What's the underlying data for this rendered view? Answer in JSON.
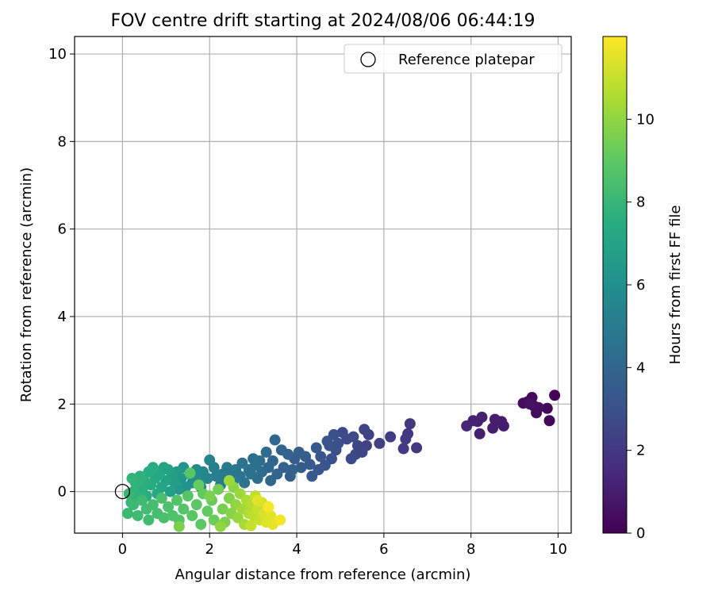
{
  "chart_data": {
    "type": "scatter",
    "title": "FOV centre drift starting at 2024/08/06 06:44:19",
    "xlabel": "Angular distance from reference (arcmin)",
    "ylabel": "Rotation from reference (arcmin)",
    "xlim": [
      -1.1,
      10.3
    ],
    "ylim": [
      -0.95,
      10.4
    ],
    "xticks": [
      0,
      2,
      4,
      6,
      8,
      10
    ],
    "yticks": [
      0,
      2,
      4,
      6,
      8,
      10
    ],
    "grid": true,
    "legend": {
      "placement": "top-right",
      "entries": [
        "Reference platepar"
      ]
    },
    "reference_point": {
      "x": 0,
      "y": 0,
      "marker": "open-circle"
    },
    "colorbar": {
      "label": "Hours from first FF file",
      "colormap": "viridis",
      "range": [
        0,
        12
      ],
      "ticks": [
        0,
        2,
        4,
        6,
        8,
        10
      ]
    },
    "points": [
      [
        9.92,
        2.2,
        0.1
      ],
      [
        9.75,
        1.9,
        0.2
      ],
      [
        9.8,
        1.62,
        0.2
      ],
      [
        9.5,
        1.8,
        0.3
      ],
      [
        9.4,
        2.15,
        0.3
      ],
      [
        9.3,
        2.05,
        0.4
      ],
      [
        9.2,
        2.02,
        0.4
      ],
      [
        9.55,
        1.92,
        0.5
      ],
      [
        9.45,
        1.95,
        0.5
      ],
      [
        9.35,
        2.0,
        0.6
      ],
      [
        8.75,
        1.5,
        0.9
      ],
      [
        8.7,
        1.6,
        0.9
      ],
      [
        8.55,
        1.65,
        1.0
      ],
      [
        8.5,
        1.45,
        1.0
      ],
      [
        8.25,
        1.7,
        1.1
      ],
      [
        8.2,
        1.32,
        1.1
      ],
      [
        8.15,
        1.6,
        1.2
      ],
      [
        8.05,
        1.62,
        1.2
      ],
      [
        7.9,
        1.5,
        1.3
      ],
      [
        6.75,
        1.0,
        1.9
      ],
      [
        6.6,
        1.55,
        2.0
      ],
      [
        6.55,
        1.32,
        2.0
      ],
      [
        6.5,
        1.2,
        2.1
      ],
      [
        6.45,
        0.98,
        2.1
      ],
      [
        6.15,
        1.25,
        2.2
      ],
      [
        5.9,
        1.1,
        2.3
      ],
      [
        5.65,
        1.3,
        2.4
      ],
      [
        5.6,
        1.05,
        2.4
      ],
      [
        5.55,
        1.42,
        2.5
      ],
      [
        5.5,
        0.9,
        2.5
      ],
      [
        5.4,
        1.05,
        2.6
      ],
      [
        5.35,
        0.85,
        2.6
      ],
      [
        5.3,
        1.25,
        2.7
      ],
      [
        5.25,
        0.75,
        2.7
      ],
      [
        5.15,
        1.2,
        2.8
      ],
      [
        5.05,
        1.35,
        2.8
      ],
      [
        4.95,
        1.1,
        2.9
      ],
      [
        4.9,
        0.95,
        2.9
      ],
      [
        4.85,
        1.3,
        3.0
      ],
      [
        4.8,
        0.75,
        3.0
      ],
      [
        4.75,
        1.05,
        3.1
      ],
      [
        4.7,
        1.15,
        3.1
      ],
      [
        4.65,
        0.6,
        3.2
      ],
      [
        4.55,
        0.8,
        3.2
      ],
      [
        4.5,
        0.5,
        3.3
      ],
      [
        4.45,
        1.0,
        3.3
      ],
      [
        4.35,
        0.35,
        3.4
      ],
      [
        4.3,
        0.62,
        3.4
      ],
      [
        4.2,
        0.8,
        3.5
      ],
      [
        4.1,
        0.55,
        3.5
      ],
      [
        4.05,
        0.9,
        3.6
      ],
      [
        3.95,
        0.75,
        3.6
      ],
      [
        3.9,
        0.5,
        3.7
      ],
      [
        3.85,
        0.35,
        3.7
      ],
      [
        3.8,
        0.85,
        3.8
      ],
      [
        3.7,
        0.55,
        3.8
      ],
      [
        3.65,
        0.95,
        3.9
      ],
      [
        3.55,
        0.4,
        3.9
      ],
      [
        3.5,
        1.18,
        4.0
      ],
      [
        3.45,
        0.7,
        4.0
      ],
      [
        3.4,
        0.25,
        4.1
      ],
      [
        3.35,
        0.55,
        4.1
      ],
      [
        3.3,
        0.9,
        4.2
      ],
      [
        3.2,
        0.45,
        4.2
      ],
      [
        3.15,
        0.7,
        4.3
      ],
      [
        3.1,
        0.3,
        4.3
      ],
      [
        3.05,
        0.6,
        4.4
      ],
      [
        3.0,
        0.75,
        4.4
      ],
      [
        2.95,
        0.4,
        4.5
      ],
      [
        2.9,
        0.5,
        4.5
      ],
      [
        2.8,
        0.2,
        4.6
      ],
      [
        2.75,
        0.65,
        4.6
      ],
      [
        2.7,
        0.35,
        4.7
      ],
      [
        2.6,
        0.5,
        4.7
      ],
      [
        2.55,
        0.25,
        4.8
      ],
      [
        2.5,
        0.45,
        4.8
      ],
      [
        2.4,
        0.55,
        4.9
      ],
      [
        2.35,
        0.3,
        4.9
      ],
      [
        2.3,
        0.4,
        5.0
      ],
      [
        2.25,
        0.15,
        5.0
      ],
      [
        2.15,
        0.35,
        5.1
      ],
      [
        2.1,
        0.55,
        5.2
      ],
      [
        2.0,
        0.72,
        5.3
      ],
      [
        1.95,
        0.3,
        5.4
      ],
      [
        1.85,
        0.45,
        5.5
      ],
      [
        1.8,
        0.1,
        5.6
      ],
      [
        1.75,
        0.3,
        5.7
      ],
      [
        1.7,
        0.5,
        5.8
      ],
      [
        1.6,
        0.2,
        5.9
      ],
      [
        1.55,
        0.4,
        6.0
      ],
      [
        1.45,
        0.1,
        6.1
      ],
      [
        1.4,
        0.55,
        6.2
      ],
      [
        1.35,
        0.3,
        6.3
      ],
      [
        1.3,
        0.05,
        6.4
      ],
      [
        1.25,
        0.45,
        6.5
      ],
      [
        1.2,
        0.2,
        6.6
      ],
      [
        1.15,
        0.35,
        6.7
      ],
      [
        1.1,
        0.0,
        6.8
      ],
      [
        1.05,
        0.5,
        6.9
      ],
      [
        1.0,
        0.25,
        7.0
      ],
      [
        0.95,
        0.55,
        7.0
      ],
      [
        0.9,
        0.1,
        7.1
      ],
      [
        0.85,
        0.4,
        7.2
      ],
      [
        0.8,
        -0.05,
        7.3
      ],
      [
        0.75,
        0.3,
        7.3
      ],
      [
        0.7,
        0.55,
        7.4
      ],
      [
        0.65,
        0.15,
        7.4
      ],
      [
        0.6,
        0.45,
        7.5
      ],
      [
        0.55,
        -0.1,
        7.5
      ],
      [
        0.5,
        0.25,
        7.6
      ],
      [
        0.45,
        0.05,
        7.6
      ],
      [
        0.4,
        0.35,
        7.7
      ],
      [
        0.35,
        -0.15,
        7.7
      ],
      [
        0.3,
        0.2,
        7.8
      ],
      [
        0.25,
        0.0,
        7.8
      ],
      [
        0.22,
        0.3,
        7.9
      ],
      [
        0.2,
        -0.25,
        7.9
      ],
      [
        0.15,
        -0.05,
        8.0
      ],
      [
        0.12,
        -0.5,
        8.1
      ],
      [
        0.25,
        -0.3,
        8.1
      ],
      [
        0.35,
        -0.55,
        8.2
      ],
      [
        0.45,
        -0.2,
        8.2
      ],
      [
        0.55,
        -0.4,
        8.3
      ],
      [
        0.6,
        -0.65,
        8.3
      ],
      [
        0.7,
        -0.3,
        8.4
      ],
      [
        0.8,
        -0.5,
        8.4
      ],
      [
        0.9,
        -0.15,
        8.5
      ],
      [
        0.95,
        -0.6,
        8.5
      ],
      [
        1.05,
        -0.35,
        8.6
      ],
      [
        1.15,
        -0.55,
        8.6
      ],
      [
        1.25,
        -0.2,
        8.7
      ],
      [
        1.3,
        -0.65,
        8.7
      ],
      [
        1.4,
        -0.4,
        8.8
      ],
      [
        1.5,
        -0.1,
        8.8
      ],
      [
        1.55,
        0.42,
        8.9
      ],
      [
        1.6,
        -0.55,
        8.9
      ],
      [
        1.7,
        -0.3,
        9.0
      ],
      [
        1.8,
        -0.75,
        9.0
      ],
      [
        1.85,
        -0.05,
        9.1
      ],
      [
        1.95,
        -0.45,
        9.1
      ],
      [
        2.05,
        -0.2,
        9.2
      ],
      [
        2.1,
        -0.65,
        9.3
      ],
      [
        2.2,
        0.05,
        9.4
      ],
      [
        2.3,
        -0.4,
        9.5
      ],
      [
        2.35,
        -0.7,
        9.6
      ],
      [
        2.45,
        -0.15,
        9.7
      ],
      [
        2.5,
        -0.5,
        9.8
      ],
      [
        2.55,
        0.1,
        9.9
      ],
      [
        2.6,
        -0.3,
        10.0
      ],
      [
        2.65,
        -0.6,
        10.1
      ],
      [
        2.7,
        -0.05,
        10.2
      ],
      [
        2.75,
        -0.4,
        10.3
      ],
      [
        2.8,
        -0.75,
        10.4
      ],
      [
        2.85,
        -0.2,
        10.5
      ],
      [
        2.9,
        -0.5,
        10.6
      ],
      [
        2.95,
        -0.3,
        10.7
      ],
      [
        3.0,
        -0.55,
        10.8
      ],
      [
        3.05,
        -0.1,
        10.9
      ],
      [
        3.1,
        -0.4,
        11.0
      ],
      [
        3.15,
        -0.65,
        11.1
      ],
      [
        3.2,
        -0.25,
        11.2
      ],
      [
        3.25,
        -0.5,
        11.3
      ],
      [
        3.3,
        -0.7,
        11.4
      ],
      [
        3.4,
        -0.55,
        11.5
      ],
      [
        3.45,
        -0.75,
        11.6
      ],
      [
        3.62,
        -0.65,
        11.8
      ],
      [
        1.3,
        -0.8,
        9.6
      ],
      [
        1.75,
        0.15,
        9.2
      ],
      [
        2.0,
        -0.1,
        9.6
      ],
      [
        2.25,
        -0.8,
        10.0
      ],
      [
        2.45,
        0.25,
        10.2
      ],
      [
        2.95,
        -0.78,
        11.0
      ],
      [
        3.1,
        -0.2,
        11.5
      ],
      [
        3.35,
        -0.35,
        11.9
      ]
    ]
  }
}
